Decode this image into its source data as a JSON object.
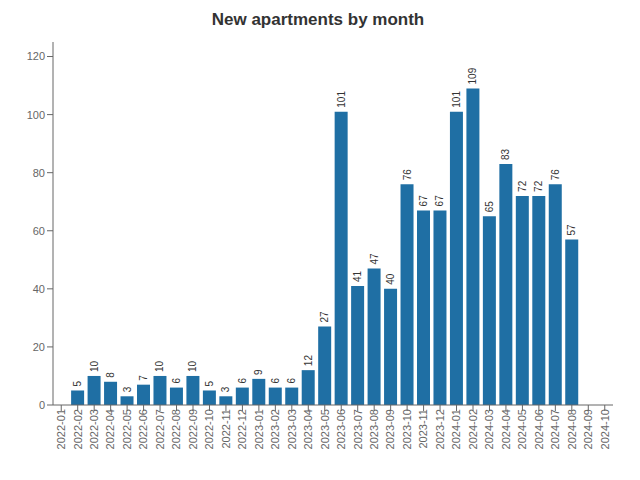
{
  "chart_data": {
    "type": "bar",
    "title": "New apartments by month",
    "categories": [
      "2022-01",
      "2022-02",
      "2022-03",
      "2022-04",
      "2022-05",
      "2022-06",
      "2022-07",
      "2022-08",
      "2022-09",
      "2022-10",
      "2022-11",
      "2022-12",
      "2023-01",
      "2023-02",
      "2023-03",
      "2023-04",
      "2023-05",
      "2023-06",
      "2023-07",
      "2023-08",
      "2023-09",
      "2023-10",
      "2023-11",
      "2023-12",
      "2024-01",
      "2024-02",
      "2024-03",
      "2024-04",
      "2024-05",
      "2024-06",
      "2024-07",
      "2024-08",
      "2024-09",
      "2024-10"
    ],
    "values": [
      0,
      5,
      10,
      8,
      3,
      7,
      10,
      6,
      10,
      5,
      3,
      6,
      9,
      6,
      6,
      12,
      27,
      101,
      41,
      47,
      40,
      76,
      67,
      67,
      101,
      109,
      65,
      83,
      72,
      72,
      76,
      57,
      0,
      0
    ],
    "color": "#1f6fa4",
    "ylim": [
      0,
      125
    ],
    "yticks": [
      0,
      20,
      40,
      60,
      80,
      100,
      120
    ],
    "grid": false,
    "data_labels": true
  }
}
